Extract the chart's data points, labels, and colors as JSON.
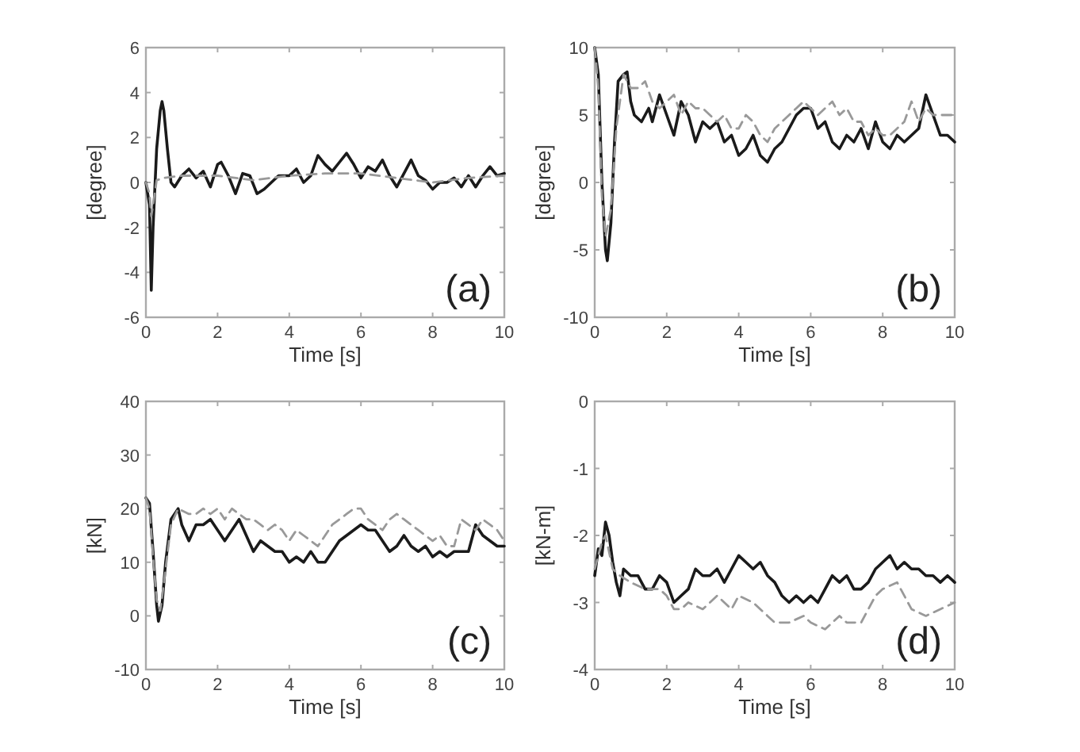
{
  "chart_data": [
    {
      "type": "line",
      "xlabel": "Time [s]",
      "ylabel": "[degree]",
      "xlim": [
        0,
        10
      ],
      "ylim": [
        -6,
        6
      ],
      "xticks": [
        0,
        2,
        4,
        6,
        8,
        10
      ],
      "yticks": [
        -6,
        -4,
        -2,
        0,
        2,
        4,
        6
      ],
      "annotations": [
        "(a)"
      ],
      "series": [
        {
          "color": "#1a1a1a",
          "line_style": "solid",
          "x": [
            0,
            0.1,
            0.15,
            0.2,
            0.3,
            0.4,
            0.45,
            0.5,
            0.6,
            0.7,
            0.8,
            1,
            1.2,
            1.4,
            1.6,
            1.8,
            2,
            2.1,
            2.3,
            2.5,
            2.7,
            2.9,
            3.1,
            3.3,
            3.5,
            3.7,
            4,
            4.2,
            4.4,
            4.6,
            4.8,
            5,
            5.2,
            5.4,
            5.6,
            5.8,
            6,
            6.2,
            6.4,
            6.6,
            6.8,
            7,
            7.2,
            7.4,
            7.6,
            7.8,
            8,
            8.2,
            8.4,
            8.6,
            8.8,
            9,
            9.2,
            9.4,
            9.6,
            9.8,
            10
          ],
          "values": [
            0,
            -1,
            -4.8,
            -2,
            1.5,
            3.2,
            3.6,
            3.2,
            1.5,
            0,
            -0.2,
            0.3,
            0.6,
            0.2,
            0.5,
            -0.2,
            0.8,
            0.9,
            0.3,
            -0.5,
            0.4,
            0.3,
            -0.5,
            -0.3,
            0,
            0.3,
            0.3,
            0.6,
            0,
            0.3,
            1.2,
            0.8,
            0.5,
            0.9,
            1.3,
            0.8,
            0.2,
            0.7,
            0.5,
            1,
            0.3,
            -0.2,
            0.4,
            1,
            0.3,
            0.1,
            -0.3,
            0,
            0,
            0.2,
            -0.2,
            0.3,
            -0.2,
            0.3,
            0.7,
            0.3,
            0.4
          ]
        },
        {
          "color": "#999999",
          "line_style": "dashed",
          "x": [
            0,
            0.1,
            0.15,
            0.2,
            0.3,
            0.5,
            1,
            2,
            3,
            4,
            5,
            6,
            7,
            8,
            9,
            10
          ],
          "values": [
            0,
            -0.5,
            -1.5,
            -1,
            0.1,
            0.2,
            0.3,
            0.3,
            0.1,
            0.3,
            0.4,
            0.4,
            0.2,
            0,
            0.2,
            0.3
          ]
        }
      ]
    },
    {
      "type": "line",
      "xlabel": "Time [s]",
      "ylabel": "[degree]",
      "xlim": [
        0,
        10
      ],
      "ylim": [
        -10,
        10
      ],
      "xticks": [
        0,
        2,
        4,
        6,
        8,
        10
      ],
      "yticks": [
        -10,
        -5,
        0,
        5,
        10
      ],
      "annotations": [
        "(b)"
      ],
      "series": [
        {
          "color": "#1a1a1a",
          "line_style": "solid",
          "x": [
            0,
            0.1,
            0.2,
            0.3,
            0.35,
            0.45,
            0.55,
            0.65,
            0.8,
            0.9,
            1,
            1.1,
            1.3,
            1.5,
            1.6,
            1.8,
            2,
            2.2,
            2.4,
            2.6,
            2.8,
            3,
            3.2,
            3.4,
            3.6,
            3.8,
            4,
            4.2,
            4.4,
            4.6,
            4.8,
            5,
            5.2,
            5.4,
            5.6,
            5.8,
            6,
            6.2,
            6.4,
            6.6,
            6.8,
            7,
            7.2,
            7.4,
            7.6,
            7.8,
            8,
            8.2,
            8.4,
            8.6,
            8.8,
            9,
            9.2,
            9.4,
            9.6,
            9.8,
            10
          ],
          "values": [
            10,
            8,
            0,
            -5,
            -5.8,
            -3,
            3,
            7.5,
            8,
            8.2,
            6,
            5,
            4.5,
            5.5,
            4.5,
            6.5,
            5,
            3.5,
            6,
            5,
            3,
            4.5,
            4,
            4.5,
            3,
            3.5,
            2,
            2.5,
            3.5,
            2,
            1.5,
            2.5,
            3,
            4,
            5,
            5.5,
            5.5,
            4,
            4.5,
            3,
            2.5,
            3.5,
            3,
            4,
            2.5,
            4.5,
            3,
            2.5,
            3.5,
            3,
            3.5,
            4,
            6.5,
            5,
            3.5,
            3.5,
            3
          ]
        },
        {
          "color": "#999999",
          "line_style": "dashed",
          "x": [
            0,
            0.1,
            0.2,
            0.3,
            0.45,
            0.6,
            0.8,
            1,
            1.2,
            1.4,
            1.6,
            1.8,
            2,
            2.2,
            2.4,
            2.6,
            2.8,
            3,
            3.2,
            3.4,
            3.6,
            3.8,
            4,
            4.2,
            4.4,
            4.6,
            4.8,
            5,
            5.2,
            5.4,
            5.6,
            5.8,
            6,
            6.2,
            6.4,
            6.6,
            6.8,
            7,
            7.2,
            7.4,
            7.6,
            7.8,
            8,
            8.2,
            8.4,
            8.6,
            8.8,
            9,
            9.2,
            9.4,
            9.6,
            9.8,
            10
          ],
          "values": [
            10,
            7,
            -1,
            -4,
            -2,
            4,
            8,
            7,
            7,
            7.5,
            6,
            5.5,
            6,
            6.5,
            5,
            6,
            5.5,
            5.5,
            5,
            4.5,
            5,
            4,
            4,
            5,
            4.5,
            3.5,
            3,
            4,
            4.5,
            5,
            5.5,
            6,
            5.5,
            5,
            5.5,
            6,
            5,
            5.5,
            4.5,
            4.5,
            3.5,
            4,
            3.5,
            3.5,
            4,
            4.5,
            6,
            4.5,
            5.5,
            5,
            5,
            5,
            5
          ]
        }
      ]
    },
    {
      "type": "line",
      "xlabel": "Time [s]",
      "ylabel": "[kN]",
      "xlim": [
        0,
        10
      ],
      "ylim": [
        -10,
        40
      ],
      "xticks": [
        0,
        2,
        4,
        6,
        8,
        10
      ],
      "yticks": [
        -10,
        0,
        10,
        20,
        30,
        40
      ],
      "annotations": [
        "(c)"
      ],
      "series": [
        {
          "color": "#1a1a1a",
          "line_style": "solid",
          "x": [
            0,
            0.1,
            0.2,
            0.3,
            0.35,
            0.45,
            0.55,
            0.7,
            0.9,
            1,
            1.2,
            1.4,
            1.6,
            1.8,
            2,
            2.2,
            2.4,
            2.6,
            2.8,
            3,
            3.2,
            3.4,
            3.6,
            3.8,
            4,
            4.2,
            4.4,
            4.6,
            4.8,
            5,
            5.2,
            5.4,
            5.6,
            5.8,
            6,
            6.2,
            6.4,
            6.6,
            6.8,
            7,
            7.2,
            7.4,
            7.6,
            7.8,
            8,
            8.2,
            8.4,
            8.6,
            8.8,
            9,
            9.2,
            9.4,
            9.6,
            9.8,
            10
          ],
          "values": [
            22,
            21,
            12,
            2,
            -1,
            2,
            10,
            18,
            20,
            17,
            14,
            17,
            17,
            18,
            16,
            14,
            16,
            18,
            15,
            12,
            14,
            13,
            12,
            12,
            10,
            11,
            10,
            12,
            10,
            10,
            12,
            14,
            15,
            16,
            17,
            16,
            16,
            14,
            12,
            13,
            15,
            13,
            12,
            13,
            11,
            12,
            11,
            12,
            12,
            12,
            17,
            15,
            14,
            13,
            13
          ]
        },
        {
          "color": "#999999",
          "line_style": "dashed",
          "x": [
            0,
            0.1,
            0.2,
            0.3,
            0.4,
            0.5,
            0.7,
            0.9,
            1.2,
            1.4,
            1.6,
            1.8,
            2,
            2.2,
            2.4,
            2.6,
            2.8,
            3,
            3.2,
            3.4,
            3.6,
            3.8,
            4,
            4.2,
            4.4,
            4.6,
            4.8,
            5,
            5.2,
            5.4,
            5.6,
            5.8,
            6,
            6.2,
            6.4,
            6.6,
            6.8,
            7,
            7.2,
            7.4,
            7.6,
            7.8,
            8,
            8.2,
            8.4,
            8.6,
            8.8,
            9,
            9.2,
            9.4,
            9.6,
            9.8,
            10
          ],
          "values": [
            22,
            20,
            11,
            3,
            1,
            6,
            17,
            20,
            19,
            19,
            20,
            19,
            20,
            18,
            20,
            19,
            18,
            18,
            17,
            16,
            17,
            16,
            14,
            16,
            15,
            14,
            13,
            15,
            17,
            18,
            19,
            20,
            20,
            18,
            17,
            16,
            18,
            19,
            18,
            17,
            16,
            15,
            14,
            15,
            13,
            13,
            18,
            17,
            16,
            18,
            17,
            16,
            14
          ]
        }
      ]
    },
    {
      "type": "line",
      "xlabel": "Time [s]",
      "ylabel": "[kN-m]",
      "xlim": [
        0,
        10
      ],
      "ylim": [
        -4,
        0
      ],
      "xticks": [
        0,
        2,
        4,
        6,
        8,
        10
      ],
      "yticks": [
        -4,
        -3,
        -2,
        -1,
        0
      ],
      "annotations": [
        "(d)"
      ],
      "series": [
        {
          "color": "#1a1a1a",
          "line_style": "solid",
          "x": [
            0,
            0.1,
            0.2,
            0.3,
            0.4,
            0.5,
            0.6,
            0.7,
            0.8,
            1,
            1.2,
            1.4,
            1.6,
            1.8,
            2,
            2.2,
            2.4,
            2.6,
            2.8,
            3,
            3.2,
            3.4,
            3.6,
            3.8,
            4,
            4.2,
            4.4,
            4.6,
            4.8,
            5,
            5.2,
            5.4,
            5.6,
            5.8,
            6,
            6.2,
            6.4,
            6.6,
            6.8,
            7,
            7.2,
            7.4,
            7.6,
            7.8,
            8,
            8.2,
            8.4,
            8.6,
            8.8,
            9,
            9.2,
            9.4,
            9.6,
            9.8,
            10
          ],
          "values": [
            -2.6,
            -2.2,
            -2.3,
            -1.8,
            -2,
            -2.4,
            -2.7,
            -2.9,
            -2.5,
            -2.6,
            -2.6,
            -2.8,
            -2.8,
            -2.6,
            -2.7,
            -3,
            -2.9,
            -2.8,
            -2.5,
            -2.6,
            -2.6,
            -2.5,
            -2.7,
            -2.5,
            -2.3,
            -2.4,
            -2.5,
            -2.4,
            -2.6,
            -2.7,
            -2.9,
            -3,
            -2.9,
            -3,
            -2.9,
            -3,
            -2.8,
            -2.6,
            -2.7,
            -2.6,
            -2.8,
            -2.8,
            -2.7,
            -2.5,
            -2.4,
            -2.3,
            -2.5,
            -2.4,
            -2.5,
            -2.5,
            -2.6,
            -2.6,
            -2.7,
            -2.6,
            -2.7
          ]
        },
        {
          "color": "#999999",
          "line_style": "dashed",
          "x": [
            0,
            0.2,
            0.3,
            0.5,
            0.7,
            1,
            1.4,
            1.8,
            2,
            2.2,
            2.4,
            2.6,
            3,
            3.4,
            3.8,
            4,
            4.4,
            4.8,
            5,
            5.4,
            5.8,
            6,
            6.4,
            6.8,
            7,
            7.4,
            7.8,
            8,
            8.4,
            8.8,
            9.2,
            9.6,
            10
          ],
          "values": [
            -2.5,
            -2.1,
            -2,
            -2.5,
            -2.6,
            -2.7,
            -2.8,
            -2.8,
            -2.9,
            -3.1,
            -3.1,
            -3,
            -3.1,
            -2.9,
            -3.1,
            -2.9,
            -3,
            -3.2,
            -3.3,
            -3.3,
            -3.2,
            -3.3,
            -3.4,
            -3.2,
            -3.3,
            -3.3,
            -2.9,
            -2.8,
            -2.7,
            -3.1,
            -3.2,
            -3.1,
            -3
          ]
        }
      ]
    }
  ]
}
